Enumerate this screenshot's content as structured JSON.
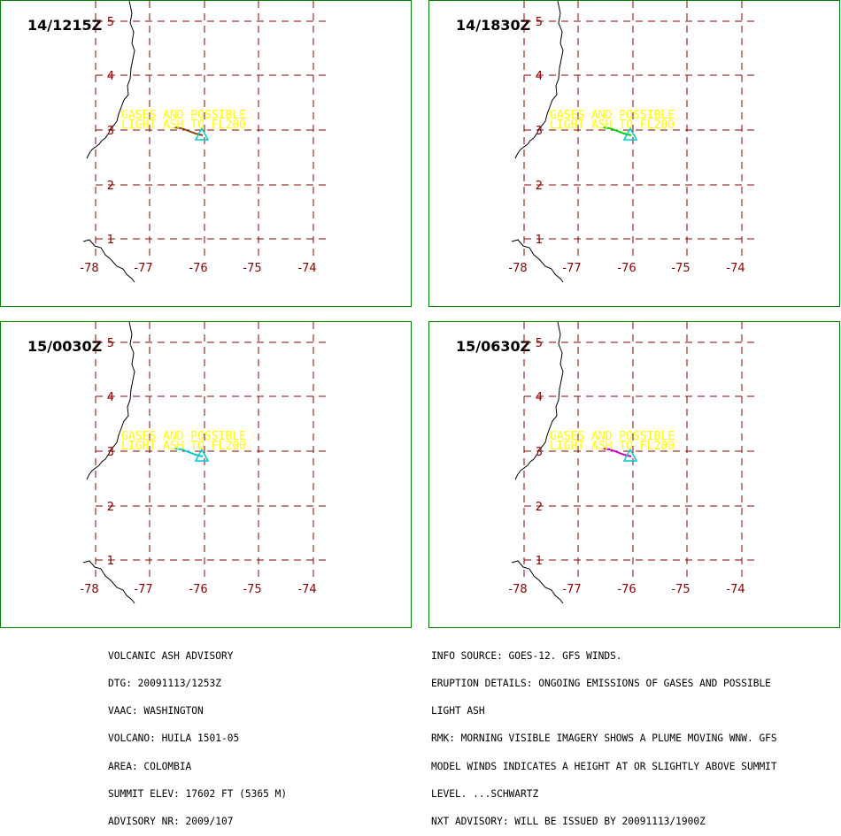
{
  "panels": [
    {
      "time": "14/1215Z",
      "plume_color": "#8b4513"
    },
    {
      "time": "14/1830Z",
      "plume_color": "#00cc00"
    },
    {
      "time": "15/0030Z",
      "plume_color": "#00cccc"
    },
    {
      "time": "15/0630Z",
      "plume_color": "#cc00cc"
    }
  ],
  "map": {
    "lat_labels": [
      "5",
      "4",
      "3",
      "2",
      "1"
    ],
    "lon_labels": [
      "-78",
      "-77",
      "-76",
      "-75",
      "-74"
    ],
    "ash_label_line1": "GASES AND POSSIBLE",
    "ash_label_line2": "LIGHT ASH TO FL200",
    "colors": {
      "grid": "#8b0000",
      "border": "#008000",
      "label": "#ffff00",
      "volcano": "#00cccc"
    }
  },
  "footer_left": [
    "VOLCANIC ASH ADVISORY",
    "DTG: 20091113/1253Z",
    "VAAC: WASHINGTON",
    "VOLCANO: HUILA 1501-05",
    "AREA: COLOMBIA",
    "SUMMIT ELEV: 17602 FT (5365 M)",
    "ADVISORY NR: 2009/107"
  ],
  "footer_right": [
    "INFO SOURCE: GOES-12. GFS WINDS.",
    "ERUPTION DETAILS: ONGOING EMISSIONS OF GASES AND POSSIBLE",
    "LIGHT ASH",
    "RMK: MORNING VISIBLE IMAGERY SHOWS A PLUME MOVING WNW. GFS",
    "MODEL WINDS INDICATES A HEIGHT AT OR SLIGHTLY ABOVE SUMMIT",
    "LEVEL. ...SCHWARTZ",
    "NXT ADVISORY: WILL BE ISSUED BY 20091113/1900Z"
  ]
}
